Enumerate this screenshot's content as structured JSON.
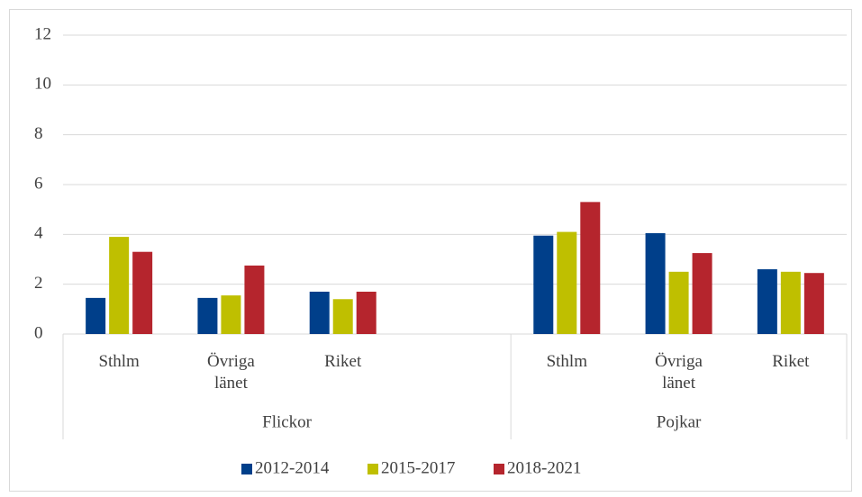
{
  "chart_data": {
    "type": "bar",
    "groups": [
      {
        "label": "Flickor",
        "categories": [
          "Sthlm",
          "Övriga länet",
          "Riket",
          null
        ]
      },
      {
        "label": "Pojkar",
        "categories": [
          "Sthlm",
          "Övriga länet",
          "Riket"
        ]
      }
    ],
    "series": [
      {
        "name": "2012-2014",
        "color": "#003f8a",
        "values": [
          1.45,
          1.45,
          1.7,
          null,
          3.95,
          4.05,
          2.6
        ]
      },
      {
        "name": "2015-2017",
        "color": "#bfbf00",
        "values": [
          3.9,
          1.55,
          1.4,
          null,
          4.1,
          2.5,
          2.5
        ]
      },
      {
        "name": "2018-2021",
        "color": "#b5252d",
        "values": [
          3.3,
          2.75,
          1.7,
          null,
          5.3,
          3.25,
          2.45
        ]
      }
    ],
    "ylim": [
      0,
      12
    ],
    "yticks": [
      0,
      2,
      4,
      6,
      8,
      10,
      12
    ],
    "grid": true,
    "legend": "bottom"
  }
}
